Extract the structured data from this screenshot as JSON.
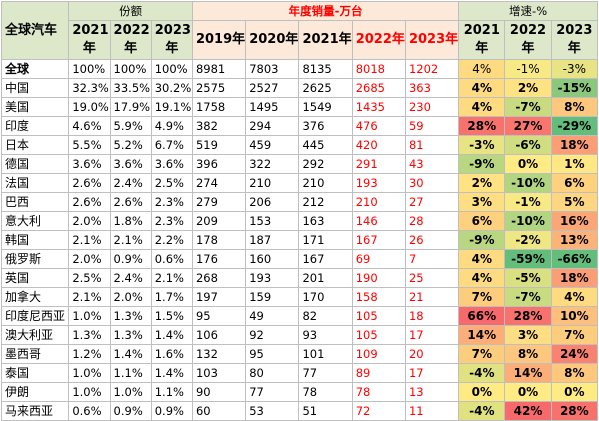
{
  "header": {
    "corner": "全球汽车",
    "share_group": "份额",
    "sales_group": "年度销量-万台",
    "growth_group": "增速-%",
    "share_years": [
      {
        "top": "2021",
        "bottom": "年"
      },
      {
        "top": "2022",
        "bottom": "年"
      },
      {
        "top": "2023",
        "bottom": "年"
      }
    ],
    "sales_years": [
      "2019年",
      "2020年",
      "2021年",
      "2022年",
      "2023年"
    ],
    "growth_years": [
      {
        "top": "2021",
        "bottom": "年"
      },
      {
        "top": "2022",
        "bottom": "年"
      },
      {
        "top": "2023",
        "bottom": "年"
      }
    ]
  },
  "colors": {
    "header_green": "#dde8cb",
    "header_pink": "#fde9d9",
    "red_text": "#ff0000",
    "growth_scale_low": "#63be7b",
    "growth_scale_mid": "#ffeb84",
    "growth_scale_high": "#f8696b"
  },
  "rows": [
    {
      "country": "全球",
      "share": [
        "100%",
        "100%",
        "100%"
      ],
      "sales": [
        "8981",
        "7803",
        "8135",
        "8018",
        "1202"
      ],
      "growth": [
        "4%",
        "-1%",
        "-3%"
      ],
      "growth_val": [
        4,
        -1,
        -3
      ]
    },
    {
      "country": "中国",
      "share": [
        "32.3%",
        "33.5%",
        "30.2%"
      ],
      "sales": [
        "2575",
        "2527",
        "2625",
        "2685",
        "363"
      ],
      "growth": [
        "4%",
        "2%",
        "-15%"
      ],
      "growth_val": [
        4,
        2,
        -15
      ]
    },
    {
      "country": "美国",
      "share": [
        "19.0%",
        "17.9%",
        "19.1%"
      ],
      "sales": [
        "1758",
        "1495",
        "1549",
        "1435",
        "230"
      ],
      "growth": [
        "4%",
        "-7%",
        "8%"
      ],
      "growth_val": [
        4,
        -7,
        8
      ]
    },
    {
      "country": "印度",
      "share": [
        "4.6%",
        "5.9%",
        "4.9%"
      ],
      "sales": [
        "382",
        "294",
        "376",
        "476",
        "59"
      ],
      "growth": [
        "28%",
        "27%",
        "-29%"
      ],
      "growth_val": [
        28,
        27,
        -29
      ]
    },
    {
      "country": "日本",
      "share": [
        "5.5%",
        "5.2%",
        "6.7%"
      ],
      "sales": [
        "519",
        "459",
        "445",
        "420",
        "81"
      ],
      "growth": [
        "-3%",
        "-6%",
        "18%"
      ],
      "growth_val": [
        -3,
        -6,
        18
      ]
    },
    {
      "country": "德国",
      "share": [
        "3.6%",
        "3.6%",
        "3.6%"
      ],
      "sales": [
        "396",
        "322",
        "292",
        "291",
        "43"
      ],
      "growth": [
        "-9%",
        "0%",
        "1%"
      ],
      "growth_val": [
        -9,
        0,
        1
      ]
    },
    {
      "country": "法国",
      "share": [
        "2.6%",
        "2.4%",
        "2.5%"
      ],
      "sales": [
        "274",
        "210",
        "210",
        "193",
        "30"
      ],
      "growth": [
        "2%",
        "-10%",
        "6%"
      ],
      "growth_val": [
        2,
        -10,
        6
      ]
    },
    {
      "country": "巴西",
      "share": [
        "2.6%",
        "2.6%",
        "2.3%"
      ],
      "sales": [
        "279",
        "206",
        "212",
        "210",
        "27"
      ],
      "growth": [
        "3%",
        "-1%",
        "5%"
      ],
      "growth_val": [
        3,
        -1,
        5
      ]
    },
    {
      "country": "意大利",
      "share": [
        "2.0%",
        "1.8%",
        "2.3%"
      ],
      "sales": [
        "209",
        "153",
        "163",
        "146",
        "28"
      ],
      "growth": [
        "6%",
        "-10%",
        "16%"
      ],
      "growth_val": [
        6,
        -10,
        16
      ]
    },
    {
      "country": "韩国",
      "share": [
        "2.1%",
        "2.1%",
        "2.2%"
      ],
      "sales": [
        "178",
        "187",
        "171",
        "167",
        "26"
      ],
      "growth": [
        "-9%",
        "-2%",
        "13%"
      ],
      "growth_val": [
        -9,
        -2,
        13
      ]
    },
    {
      "country": "俄罗斯",
      "share": [
        "2.0%",
        "0.9%",
        "0.6%"
      ],
      "sales": [
        "176",
        "160",
        "167",
        "69",
        "7"
      ],
      "growth": [
        "4%",
        "-59%",
        "-66%"
      ],
      "growth_val": [
        4,
        -59,
        -66
      ]
    },
    {
      "country": "英国",
      "share": [
        "2.5%",
        "2.4%",
        "2.1%"
      ],
      "sales": [
        "268",
        "193",
        "201",
        "190",
        "25"
      ],
      "growth": [
        "4%",
        "-5%",
        "18%"
      ],
      "growth_val": [
        4,
        -5,
        18
      ]
    },
    {
      "country": "加拿大",
      "share": [
        "2.1%",
        "2.0%",
        "1.7%"
      ],
      "sales": [
        "197",
        "159",
        "170",
        "158",
        "21"
      ],
      "growth": [
        "7%",
        "-7%",
        "4%"
      ],
      "growth_val": [
        7,
        -7,
        4
      ]
    },
    {
      "country": "印度尼西亚",
      "share": [
        "1.0%",
        "1.3%",
        "1.5%"
      ],
      "sales": [
        "95",
        "49",
        "82",
        "105",
        "18"
      ],
      "growth": [
        "66%",
        "28%",
        "10%"
      ],
      "growth_val": [
        66,
        28,
        10
      ]
    },
    {
      "country": "澳大利亚",
      "share": [
        "1.3%",
        "1.3%",
        "1.4%"
      ],
      "sales": [
        "106",
        "92",
        "93",
        "105",
        "17"
      ],
      "growth": [
        "14%",
        "3%",
        "7%"
      ],
      "growth_val": [
        14,
        3,
        7
      ]
    },
    {
      "country": "墨西哥",
      "share": [
        "1.2%",
        "1.4%",
        "1.6%"
      ],
      "sales": [
        "132",
        "95",
        "101",
        "109",
        "20"
      ],
      "growth": [
        "7%",
        "8%",
        "24%"
      ],
      "growth_val": [
        7,
        8,
        24
      ]
    },
    {
      "country": "泰国",
      "share": [
        "1.0%",
        "1.1%",
        "1.4%"
      ],
      "sales": [
        "103",
        "80",
        "77",
        "89",
        "17"
      ],
      "growth": [
        "-4%",
        "14%",
        "8%"
      ],
      "growth_val": [
        -4,
        14,
        8
      ]
    },
    {
      "country": "伊朗",
      "share": [
        "1.0%",
        "1.0%",
        "1.1%"
      ],
      "sales": [
        "90",
        "77",
        "78",
        "78",
        "13"
      ],
      "growth": [
        "0%",
        "0%",
        "0%"
      ],
      "growth_val": [
        0,
        0,
        0
      ]
    },
    {
      "country": "马来西亚",
      "share": [
        "0.6%",
        "0.9%",
        "0.9%"
      ],
      "sales": [
        "60",
        "53",
        "51",
        "72",
        "11"
      ],
      "growth": [
        "-4%",
        "42%",
        "28%"
      ],
      "growth_val": [
        -4,
        42,
        28
      ]
    }
  ]
}
